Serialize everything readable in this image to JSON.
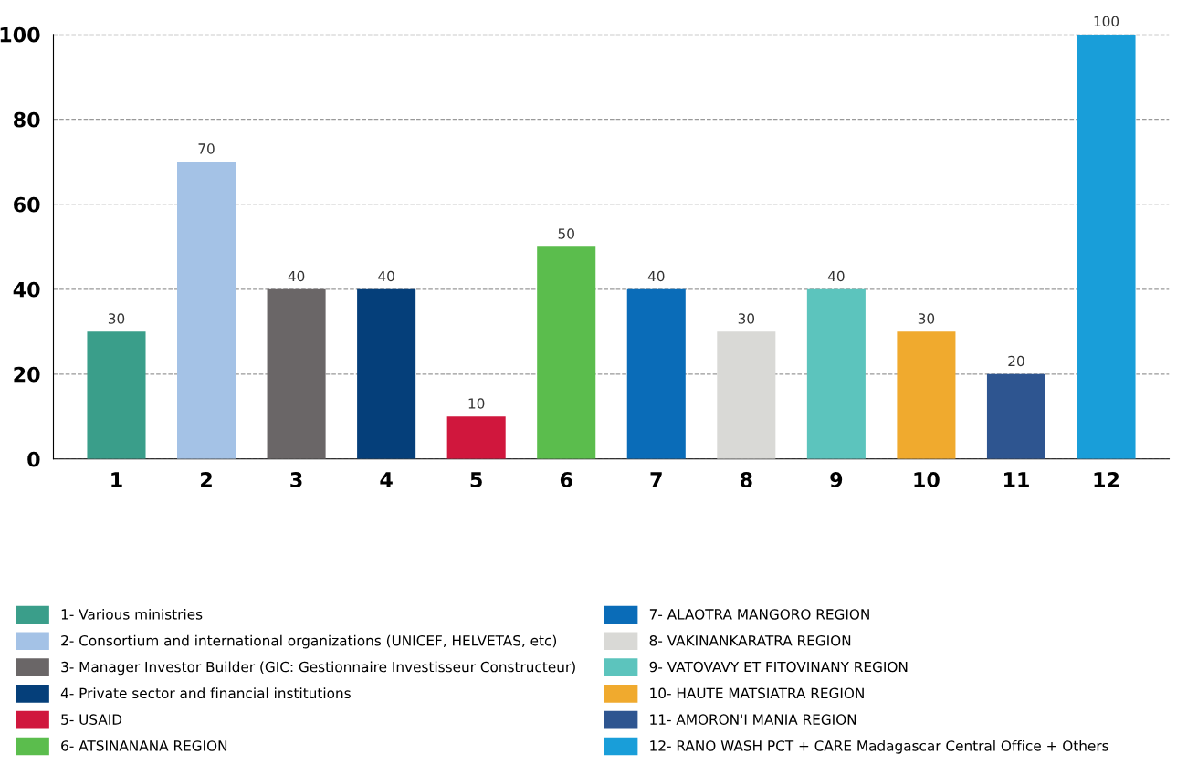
{
  "chart_data": {
    "type": "bar",
    "categories": [
      "1",
      "2",
      "3",
      "4",
      "5",
      "6",
      "7",
      "8",
      "9",
      "10",
      "11",
      "12"
    ],
    "series": [
      {
        "name": "1- Various ministries",
        "color": "#3a9e8a",
        "values": [
          30,
          null,
          null,
          null,
          null,
          null,
          null,
          null,
          null,
          null,
          null,
          null
        ]
      },
      {
        "name": "2- Consortium and international organizations (UNICEF, HELVETAS, etc)",
        "color": "#a4c2e6",
        "values": [
          null,
          70,
          null,
          null,
          null,
          null,
          null,
          null,
          null,
          null,
          null,
          null
        ]
      },
      {
        "name": "3- Manager Investor Builder (GIC: Gestionnaire Investisseur Constructeur)",
        "color": "#6a6667",
        "values": [
          null,
          null,
          40,
          null,
          null,
          null,
          null,
          null,
          null,
          null,
          null,
          null
        ]
      },
      {
        "name": "4- Private sector and financial institutions",
        "color": "#053f7a",
        "values": [
          null,
          null,
          null,
          40,
          null,
          null,
          null,
          null,
          null,
          null,
          null,
          null
        ]
      },
      {
        "name": "5- USAID",
        "color": "#d0173d",
        "values": [
          null,
          null,
          null,
          null,
          10,
          null,
          null,
          null,
          null,
          null,
          null,
          null
        ]
      },
      {
        "name": "6- ATSINANANA REGION",
        "color": "#5bbd4d",
        "values": [
          null,
          null,
          null,
          null,
          null,
          50,
          null,
          null,
          null,
          null,
          null,
          null
        ]
      },
      {
        "name": "7- ALAOTRA MANGORO REGION",
        "color": "#0a6cb8",
        "values": [
          null,
          null,
          null,
          null,
          null,
          null,
          40,
          null,
          null,
          null,
          null,
          null
        ]
      },
      {
        "name": "8- VAKINANKARATRA REGION",
        "color": "#d9d9d6",
        "values": [
          null,
          null,
          null,
          null,
          null,
          null,
          null,
          30,
          null,
          null,
          null,
          null
        ]
      },
      {
        "name": "9- VATOVAVY ET FITOVINANY REGION",
        "color": "#5cc4bd",
        "values": [
          null,
          null,
          null,
          null,
          null,
          null,
          null,
          null,
          40,
          null,
          null,
          null
        ]
      },
      {
        "name": "10- HAUTE MATSIATRA REGION",
        "color": "#f0aa2e",
        "values": [
          null,
          null,
          null,
          null,
          null,
          null,
          null,
          null,
          null,
          30,
          null,
          null
        ]
      },
      {
        "name": "11- AMORON'I MANIA REGION",
        "color": "#2e5590",
        "values": [
          null,
          null,
          null,
          null,
          null,
          null,
          null,
          null,
          null,
          null,
          20,
          null
        ]
      },
      {
        "name": "12- RANO WASH PCT + CARE Madagascar Central Office + Others",
        "color": "#199ed9",
        "values": [
          null,
          null,
          null,
          null,
          null,
          null,
          null,
          null,
          null,
          null,
          null,
          100
        ]
      }
    ],
    "ylim": [
      0,
      100
    ],
    "yticks": [
      0,
      20,
      40,
      60,
      80,
      100
    ],
    "grid": "y",
    "line_style": "dashed",
    "data_labels": true,
    "legend": "bottom"
  }
}
